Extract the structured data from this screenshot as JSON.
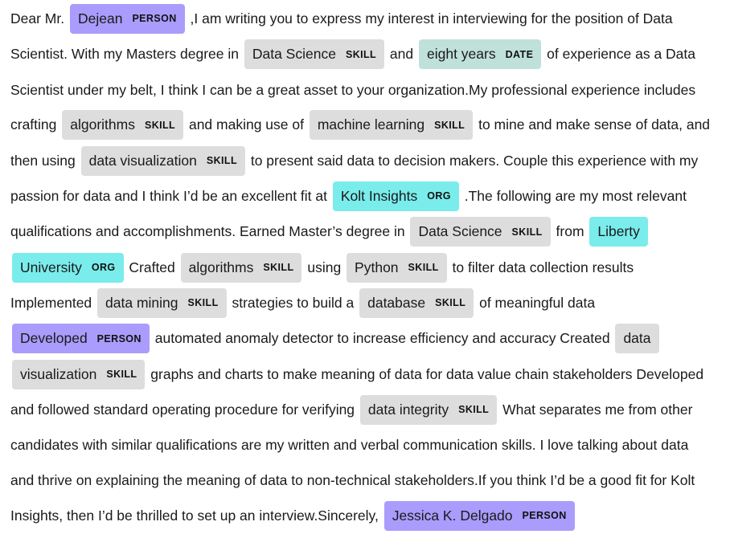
{
  "colors": {
    "PERSON": "#aa9cfc",
    "SKILL": "#dddddd",
    "DATE": "#bfe1d9",
    "ORG": "#7aecec"
  },
  "segments": [
    {
      "t": "Dear Mr. "
    },
    {
      "t": "Dejean",
      "l": "PERSON"
    },
    {
      "t": " ,I am writing you to express my interest in interviewing for the position of Data Scientist. With my Masters degree in "
    },
    {
      "t": "Data Science",
      "l": "SKILL"
    },
    {
      "t": " and "
    },
    {
      "t": "eight years",
      "l": "DATE"
    },
    {
      "t": " of experience as a Data Scientist under my belt, I think I can be a great asset to your organization.My professional experience includes crafting "
    },
    {
      "t": "algorithms",
      "l": "SKILL"
    },
    {
      "t": " and making use of "
    },
    {
      "t": "machine learning",
      "l": "SKILL"
    },
    {
      "t": " to mine and make sense of data, and then using "
    },
    {
      "t": "data visualization",
      "l": "SKILL"
    },
    {
      "t": " to present said data to decision makers. Couple this experience with my passion for data and I think I’d be an excellent fit at "
    },
    {
      "t": "Kolt Insights",
      "l": "ORG"
    },
    {
      "t": " .The following are my most relevant qualifications and accomplishments. Earned Master’s degree in "
    },
    {
      "t": "Data Science",
      "l": "SKILL"
    },
    {
      "t": " from "
    },
    {
      "t": "Liberty University",
      "l": "ORG"
    },
    {
      "t": " Crafted "
    },
    {
      "t": "algorithms",
      "l": "SKILL"
    },
    {
      "t": " using "
    },
    {
      "t": "Python",
      "l": "SKILL"
    },
    {
      "t": " to filter data collection results Implemented "
    },
    {
      "t": "data mining",
      "l": "SKILL"
    },
    {
      "t": " strategies to build a "
    },
    {
      "t": "database",
      "l": "SKILL"
    },
    {
      "t": " of meaningful data "
    },
    {
      "t": "Developed",
      "l": "PERSON"
    },
    {
      "t": " automated anomaly detector to increase efficiency and accuracy Created "
    },
    {
      "t": "data visualization",
      "l": "SKILL"
    },
    {
      "t": " graphs and charts to make meaning of data for data value chain stakeholders Developed and followed standard operating procedure for verifying "
    },
    {
      "t": "data integrity",
      "l": "SKILL"
    },
    {
      "t": " What separates me from other candidates with similar qualifications are my written and verbal communication skills. I love talking about data and thrive on explaining the meaning of data to non-technical stakeholders.If you think I’d be a good fit for Kolt Insights, then I’d be thrilled to set up an interview.Sincerely, "
    },
    {
      "t": "Jessica K. Delgado",
      "l": "PERSON"
    }
  ]
}
